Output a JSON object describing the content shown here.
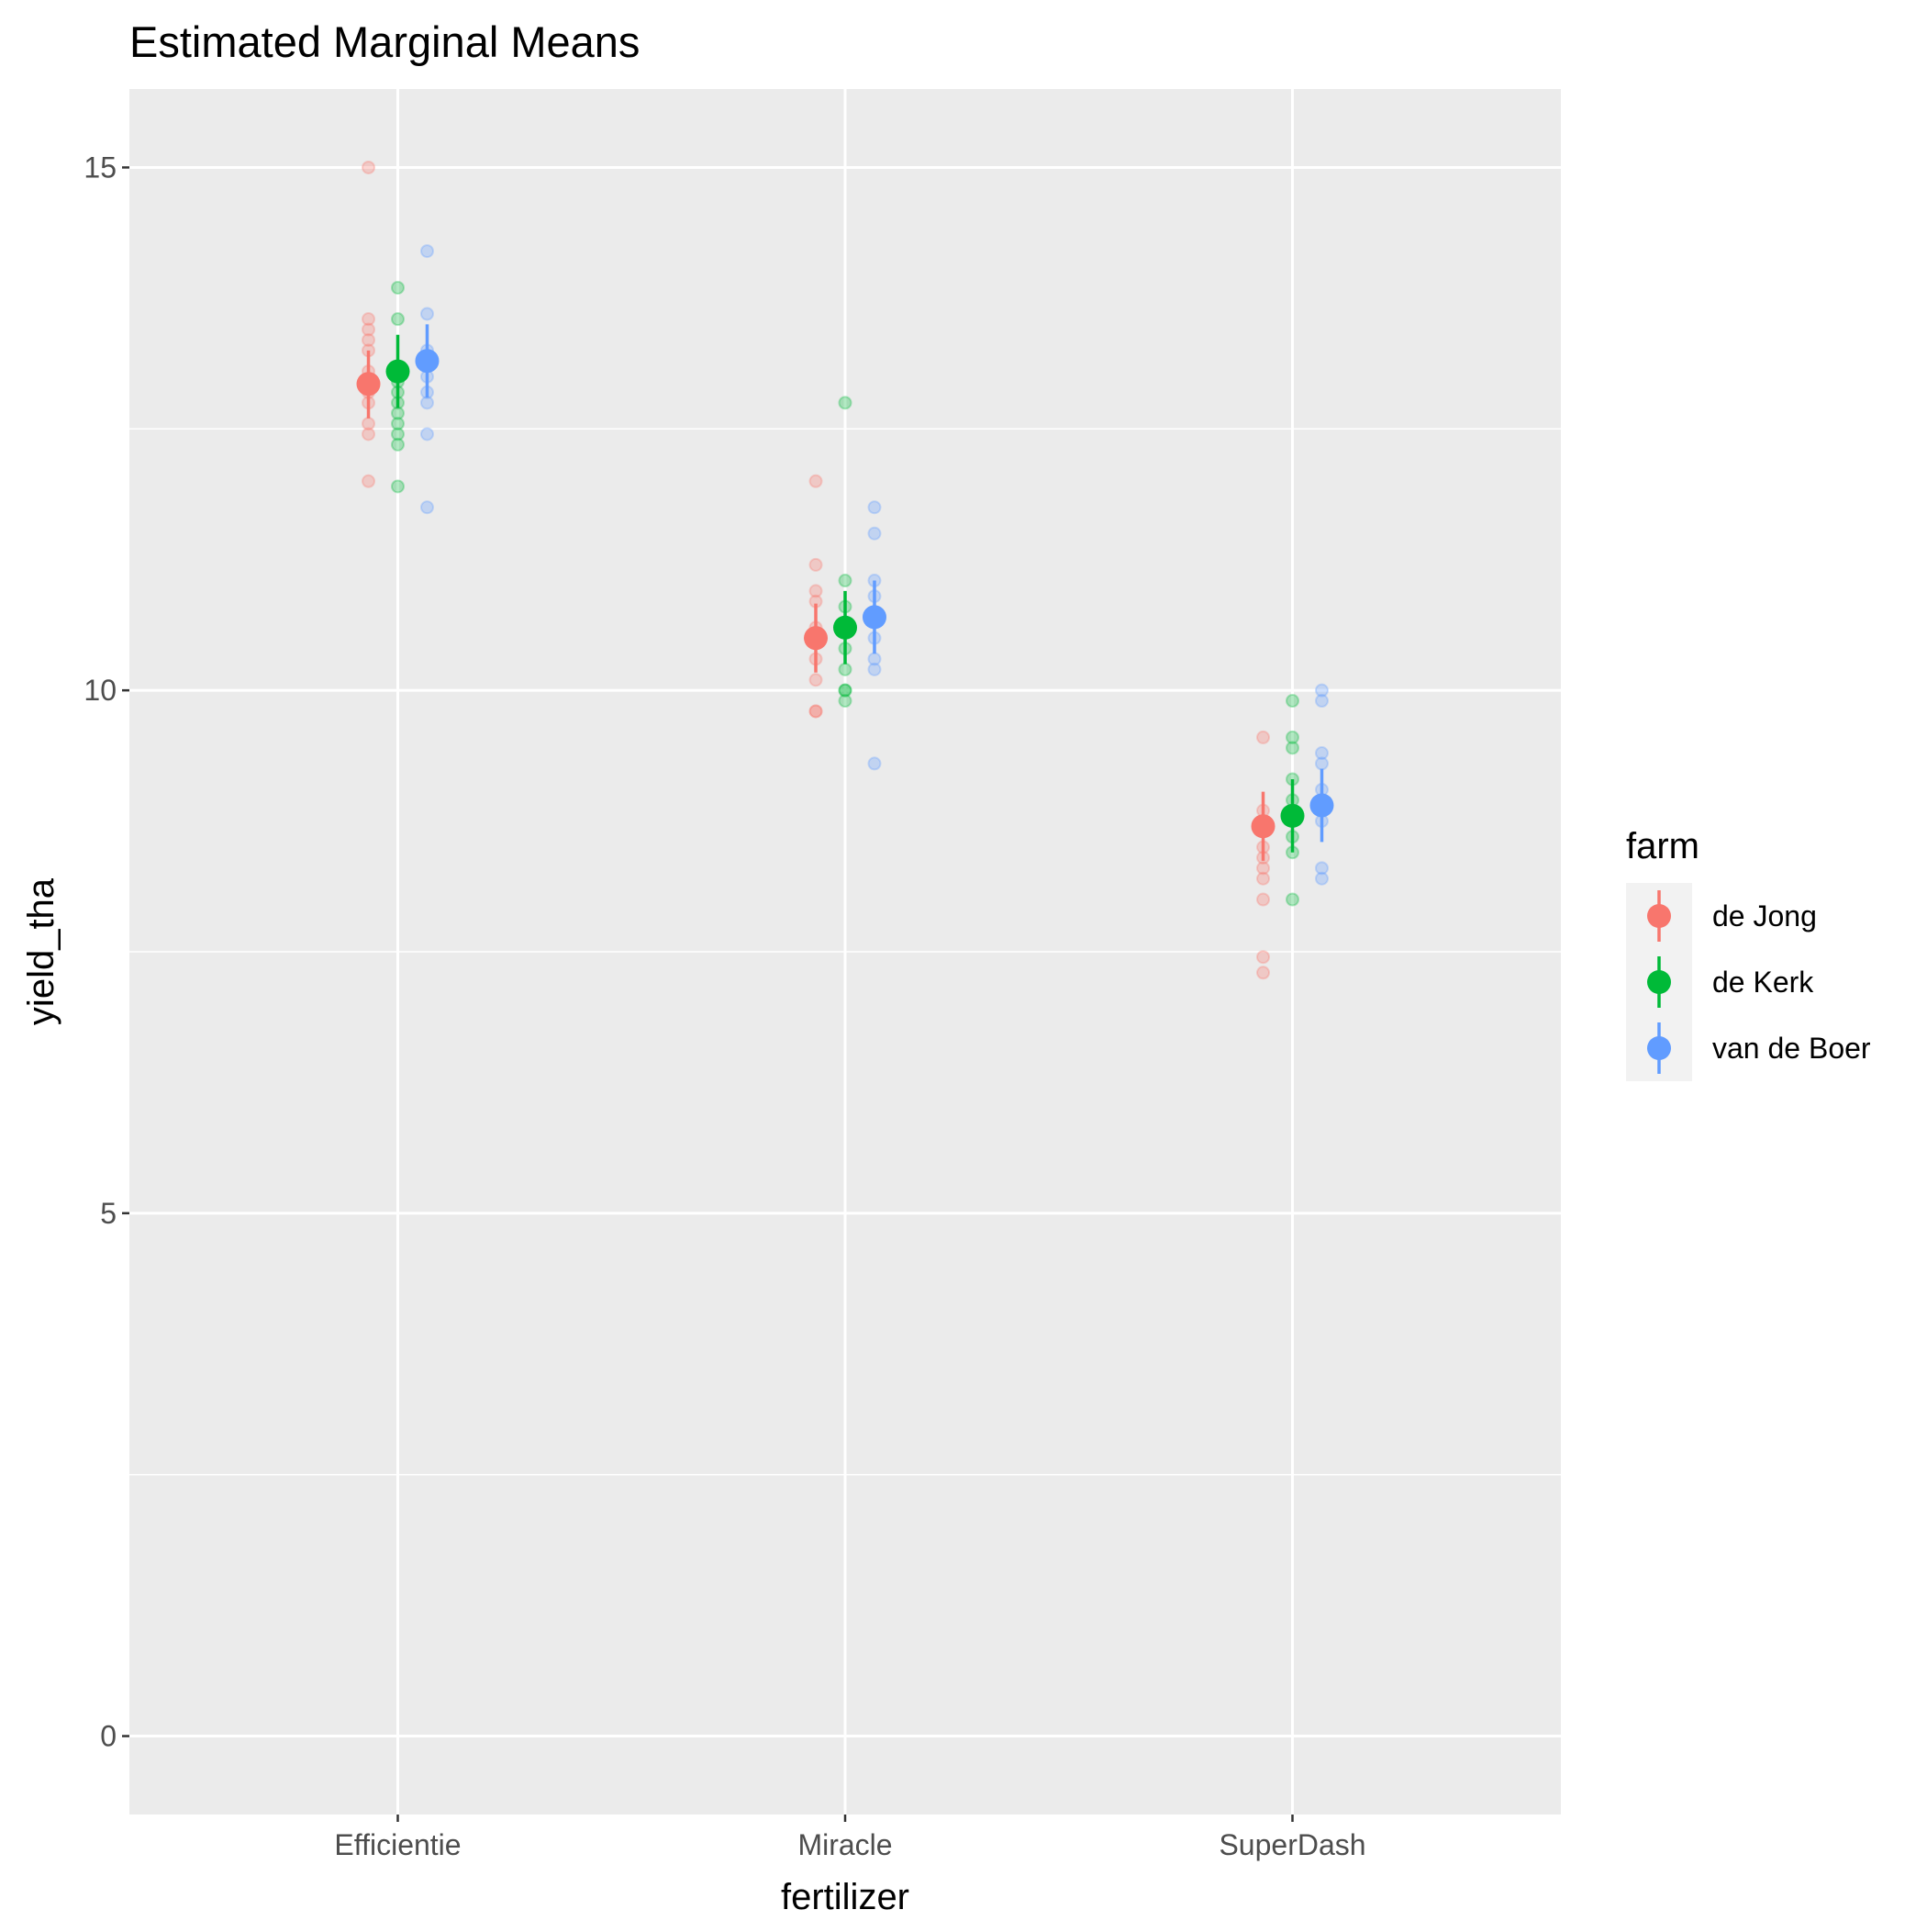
{
  "chart_data": {
    "type": "scatter",
    "title": "Estimated Marginal Means",
    "xlabel": "fertilizer",
    "ylabel": "yield_tha",
    "categories": [
      "Efficientie",
      "Miracle",
      "SuperDash"
    ],
    "ylim": [
      -0.75,
      15.75
    ],
    "yticks": [
      0,
      5,
      10,
      15
    ],
    "grid": true,
    "legend": {
      "title": "farm",
      "position": "right"
    },
    "series": [
      {
        "name": "de Jong",
        "color": "#F8766D",
        "means": [
          12.93,
          10.5,
          8.7
        ],
        "ci": [
          [
            12.6,
            13.25
          ],
          [
            10.17,
            10.83
          ],
          [
            8.37,
            9.03
          ]
        ],
        "points": [
          [
            15.0,
            13.55,
            13.45,
            13.35,
            13.25,
            13.05,
            12.95,
            12.85,
            12.75,
            12.55,
            12.45,
            12.0
          ],
          [
            12.0,
            11.2,
            10.95,
            10.85,
            10.6,
            10.45,
            10.3,
            10.1,
            9.8,
            9.8
          ],
          [
            9.55,
            8.85,
            8.75,
            8.5,
            8.4,
            8.3,
            8.2,
            8.0,
            7.45,
            7.3
          ]
        ]
      },
      {
        "name": "de Kerk",
        "color": "#00BA38",
        "means": [
          13.05,
          10.6,
          8.8
        ],
        "ci": [
          [
            12.7,
            13.4
          ],
          [
            10.25,
            10.95
          ],
          [
            8.45,
            9.15
          ]
        ],
        "points": [
          [
            13.85,
            13.55,
            13.05,
            12.95,
            12.85,
            12.75,
            12.65,
            12.55,
            12.45,
            12.35,
            11.95
          ],
          [
            12.75,
            11.05,
            10.8,
            10.65,
            10.4,
            10.2,
            10.0,
            10.0,
            9.9
          ],
          [
            9.9,
            9.55,
            9.45,
            9.15,
            8.95,
            8.8,
            8.6,
            8.45,
            8.0
          ]
        ]
      },
      {
        "name": "van de Boer",
        "color": "#619CFF",
        "means": [
          13.15,
          10.7,
          8.9
        ],
        "ci": [
          [
            12.8,
            13.5
          ],
          [
            10.35,
            11.05
          ],
          [
            8.55,
            9.25
          ]
        ],
        "points": [
          [
            14.2,
            13.6,
            13.25,
            13.15,
            13.0,
            12.85,
            12.75,
            12.45,
            11.75
          ],
          [
            11.75,
            11.5,
            11.05,
            10.9,
            10.75,
            10.5,
            10.3,
            10.2,
            9.3
          ],
          [
            10.0,
            9.9,
            9.4,
            9.3,
            9.05,
            8.95,
            8.75,
            8.3,
            8.2
          ]
        ]
      }
    ]
  }
}
